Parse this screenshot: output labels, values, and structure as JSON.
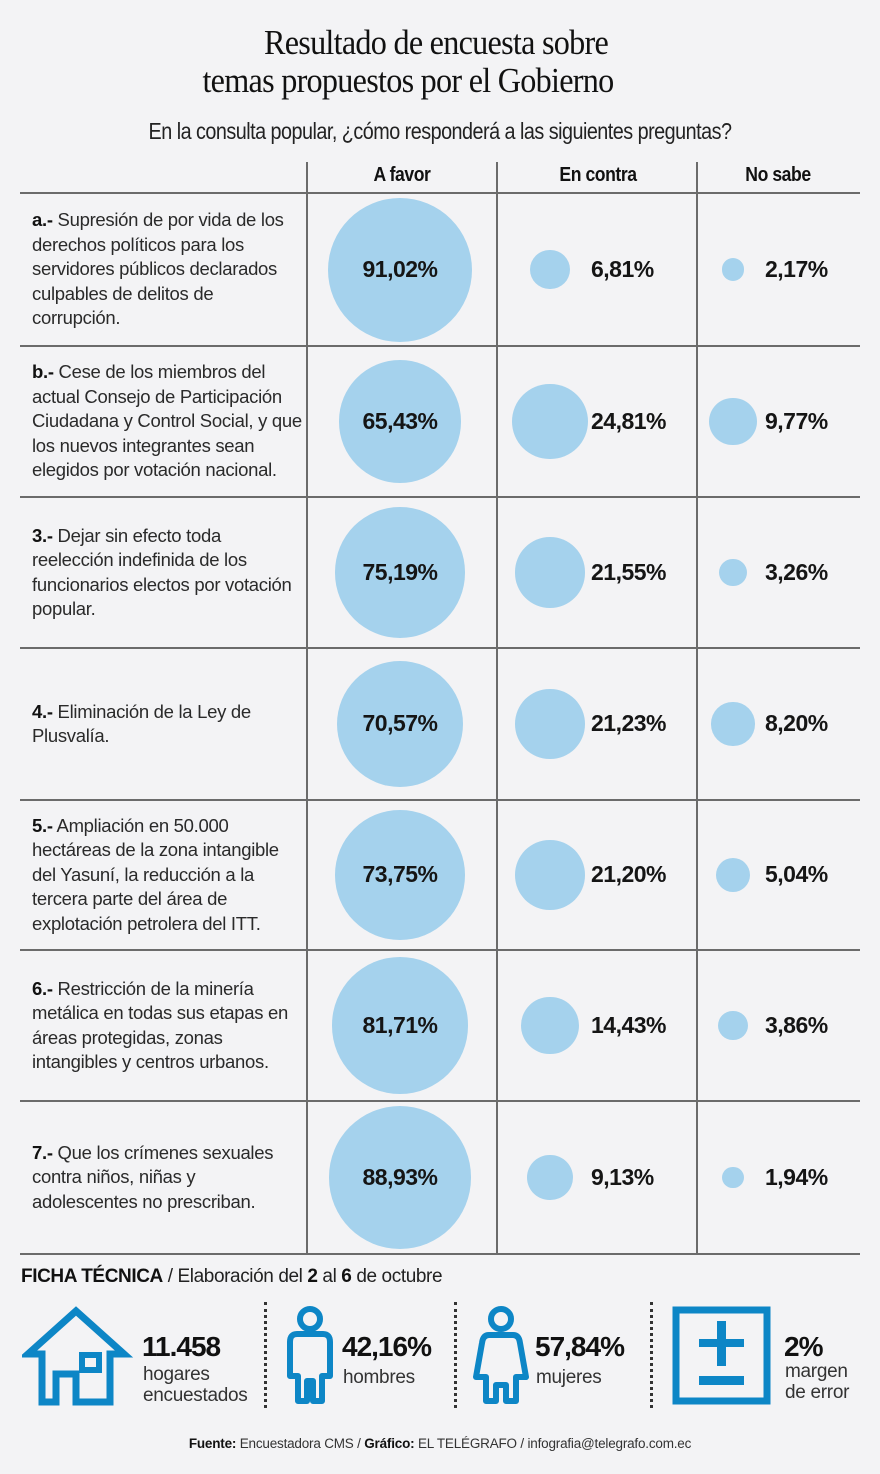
{
  "title": {
    "line1": "Resultado de encuesta sobre",
    "line2": "temas propuestos por el Gobierno"
  },
  "subtitle": "En la consulta popular, ¿cómo responderá a las siguientes preguntas?",
  "columns": [
    "A favor",
    "En contra",
    "No sabe"
  ],
  "colors": {
    "bubble": "#a5d2ed",
    "icon_blue": "#0d86c6",
    "grid": "#6b6b6b",
    "background": "#f3f3f5"
  },
  "questions": [
    {
      "num": "a.-",
      "text": "Supresión de por vida de los derechos políticos para los servidores públicos declarados culpables de delitos de corrupción.",
      "favor": "91,02%",
      "contra": "6,81%",
      "nosabe": "2,17%"
    },
    {
      "num": "b.-",
      "text": "Cese de los miembros del actual Consejo de Participación Ciudadana y Control Social, y que los nuevos integrantes sean elegidos por votación nacional.",
      "favor": "65,43%",
      "contra": "24,81%",
      "nosabe": "9,77%"
    },
    {
      "num": "3.-",
      "text": "Dejar sin efecto toda reelección indefinida de los funcionarios electos por votación popular.",
      "favor": "75,19%",
      "contra": "21,55%",
      "nosabe": "3,26%"
    },
    {
      "num": "4.-",
      "text": "Eliminación de la Ley de Plusvalía.",
      "favor": "70,57%",
      "contra": "21,23%",
      "nosabe": "8,20%"
    },
    {
      "num": "5.-",
      "text": "Ampliación en 50.000 hectáreas de la zona intangible del Yasuní, la reducción a la tercera parte del área de explotación petrolera del ITT.",
      "favor": "73,75%",
      "contra": "21,20%",
      "nosabe": "5,04%"
    },
    {
      "num": "6.-",
      "text": "Restricción de la minería metálica en todas sus etapas en áreas protegidas, zonas intangibles y centros urbanos.",
      "favor": "81,71%",
      "contra": "14,43%",
      "nosabe": "3,86%"
    },
    {
      "num": "7.-",
      "text": "Que los crímenes sexuales contra niños, niñas y adolescentes no prescriban.",
      "favor": "88,93%",
      "contra": "9,13%",
      "nosabe": "1,94%"
    }
  ],
  "chart_data": {
    "type": "table",
    "title": "Resultado de encuesta sobre temas propuestos por el Gobierno",
    "subtitle": "En la consulta popular, ¿cómo responderá a las siguientes preguntas?",
    "categories": [
      "a.-",
      "b.-",
      "3.-",
      "4.-",
      "5.-",
      "6.-",
      "7.-"
    ],
    "series": [
      {
        "name": "A favor",
        "values": [
          91.02,
          65.43,
          75.19,
          70.57,
          73.75,
          81.71,
          88.93
        ]
      },
      {
        "name": "En contra",
        "values": [
          6.81,
          24.81,
          21.55,
          21.23,
          21.2,
          14.43,
          9.13
        ]
      },
      {
        "name": "No sabe",
        "values": [
          2.17,
          9.77,
          3.26,
          8.2,
          5.04,
          3.86,
          1.94
        ]
      }
    ],
    "encoding": "bubble area proportional to percentage",
    "unit": "%"
  },
  "ficha": {
    "label": "FICHA TÉCNICA",
    "sep": " / ",
    "pre": "Elaboración del ",
    "day1": "2",
    "mid": " al ",
    "day2": "6",
    "post": " de octubre"
  },
  "stats": [
    {
      "icon": "house-icon",
      "value": "11.458",
      "label1": "hogares",
      "label2": "encuestados"
    },
    {
      "icon": "man-icon",
      "value": "42,16%",
      "label1": "hombres",
      "label2": ""
    },
    {
      "icon": "woman-icon",
      "value": "57,84%",
      "label1": "mujeres",
      "label2": ""
    },
    {
      "icon": "plus-minus-icon",
      "value": "2%",
      "label1": "margen",
      "label2": "de error"
    }
  ],
  "footer": {
    "fuente_label": "Fuente:",
    "fuente": " Encuestadora CMS / ",
    "grafico_label": "Gráfico:",
    "grafico": " EL TELÉGRAFO / infografia@telegrafo.com.ec"
  }
}
